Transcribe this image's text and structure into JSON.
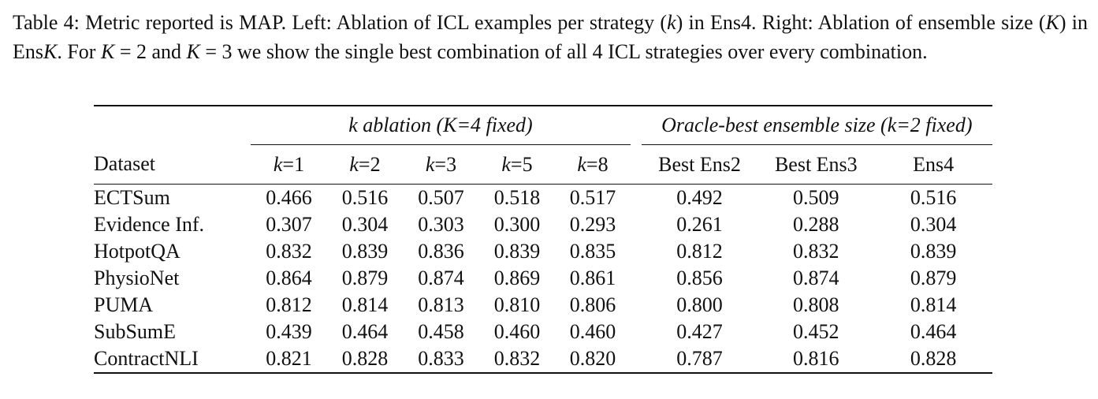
{
  "caption": {
    "part1": "Table 4: Metric reported is MAP. Left: Ablation of ICL examples per strategy (",
    "k": "k",
    "part2": ") in Ens4. Right: Ablation of ensemble size (",
    "K1": "K",
    "part3": ") in Ens",
    "K2": "K",
    "part4": ". For ",
    "K3": "K",
    "part5": " = 2 and ",
    "K4": "K",
    "part6": " = 3 we show the single best combination of all 4 ICL strategies over every combination."
  },
  "table": {
    "group_left": "k ablation (K=4 fixed)",
    "group_right": "Oracle-best ensemble size (k=2 fixed)",
    "columns": [
      "Dataset",
      "k=1",
      "k=2",
      "k=3",
      "k=5",
      "k=8",
      "Best Ens2",
      "Best Ens3",
      "Ens4"
    ],
    "rows": [
      {
        "cells": [
          "ECTSum",
          "0.466",
          "0.516",
          "0.507",
          "0.518",
          "0.517",
          "0.492",
          "0.509",
          "0.516"
        ],
        "bold": [
          4,
          8
        ]
      },
      {
        "cells": [
          "Evidence Inf.",
          "0.307",
          "0.304",
          "0.303",
          "0.300",
          "0.293",
          "0.261",
          "0.288",
          "0.304"
        ],
        "bold": [
          1,
          8
        ]
      },
      {
        "cells": [
          "HotpotQA",
          "0.832",
          "0.839",
          "0.836",
          "0.839",
          "0.835",
          "0.812",
          "0.832",
          "0.839"
        ],
        "bold": [
          2,
          4,
          8
        ]
      },
      {
        "cells": [
          "PhysioNet",
          "0.864",
          "0.879",
          "0.874",
          "0.869",
          "0.861",
          "0.856",
          "0.874",
          "0.879"
        ],
        "bold": [
          2,
          8
        ]
      },
      {
        "cells": [
          "PUMA",
          "0.812",
          "0.814",
          "0.813",
          "0.810",
          "0.806",
          "0.800",
          "0.808",
          "0.814"
        ],
        "bold": [
          2,
          8
        ]
      },
      {
        "cells": [
          "SubSumE",
          "0.439",
          "0.464",
          "0.458",
          "0.460",
          "0.460",
          "0.427",
          "0.452",
          "0.464"
        ],
        "bold": [
          2,
          8
        ]
      },
      {
        "cells": [
          "ContractNLI",
          "0.821",
          "0.828",
          "0.833",
          "0.832",
          "0.820",
          "0.787",
          "0.816",
          "0.828"
        ],
        "bold": [
          3,
          8
        ]
      }
    ]
  }
}
